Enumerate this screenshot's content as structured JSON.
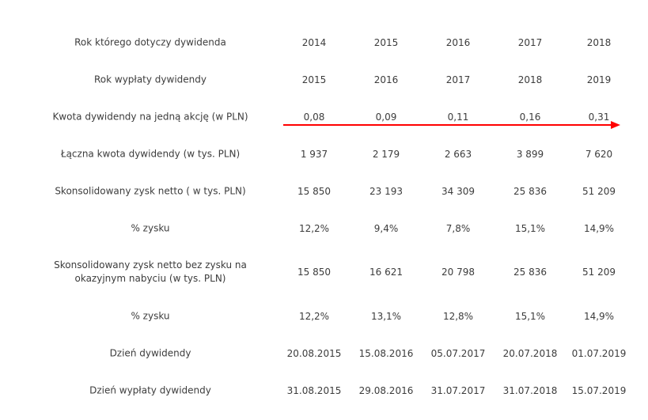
{
  "rows": [
    {
      "label": "Rok którego dotyczy dywidenda",
      "values": [
        "2014",
        "2015",
        "2016",
        "2017",
        "2018"
      ]
    },
    {
      "label": "Rok wypłaty dywidendy",
      "values": [
        "2015",
        "2016",
        "2017",
        "2018",
        "2019"
      ]
    },
    {
      "label": "Kwota dywidendy na jedną akcję (w PLN)",
      "values": [
        "0,08",
        "0,09",
        "0,11",
        "0,16",
        "0,31"
      ]
    },
    {
      "label": "Łączna kwota dywidendy (w tys. PLN)",
      "values": [
        "1 937",
        "2 179",
        "2 663",
        "3 899",
        "7 620"
      ]
    },
    {
      "label": "Skonsolidowany zysk netto ( w tys. PLN)",
      "values": [
        "15 850",
        "23 193",
        "34 309",
        "25 836",
        "51 209"
      ]
    },
    {
      "label": "% zysku",
      "values": [
        "12,2%",
        "9,4%",
        "7,8%",
        "15,1%",
        "14,9%"
      ]
    },
    {
      "label": "Skonsolidowany zysk netto bez zysku na okazyjnym nabyciu (w tys. PLN)",
      "values": [
        "15 850",
        "16 621",
        "20 798",
        "25 836",
        "51 209"
      ]
    },
    {
      "label": "% zysku",
      "values": [
        "12,2%",
        "13,1%",
        "12,8%",
        "15,1%",
        "14,9%"
      ]
    },
    {
      "label": "Dzień dywidendy",
      "values": [
        "20.08.2015",
        "15.08.2016",
        "05.07.2017",
        "20.07.2018",
        "01.07.2019"
      ]
    },
    {
      "label": "Dzień wypłaty dywidendy",
      "values": [
        "31.08.2015",
        "29.08.2016",
        "31.07.2017",
        "31.07.2018",
        "15.07.2019"
      ]
    }
  ],
  "annotation": {
    "arrow_color": "#ff0000"
  }
}
